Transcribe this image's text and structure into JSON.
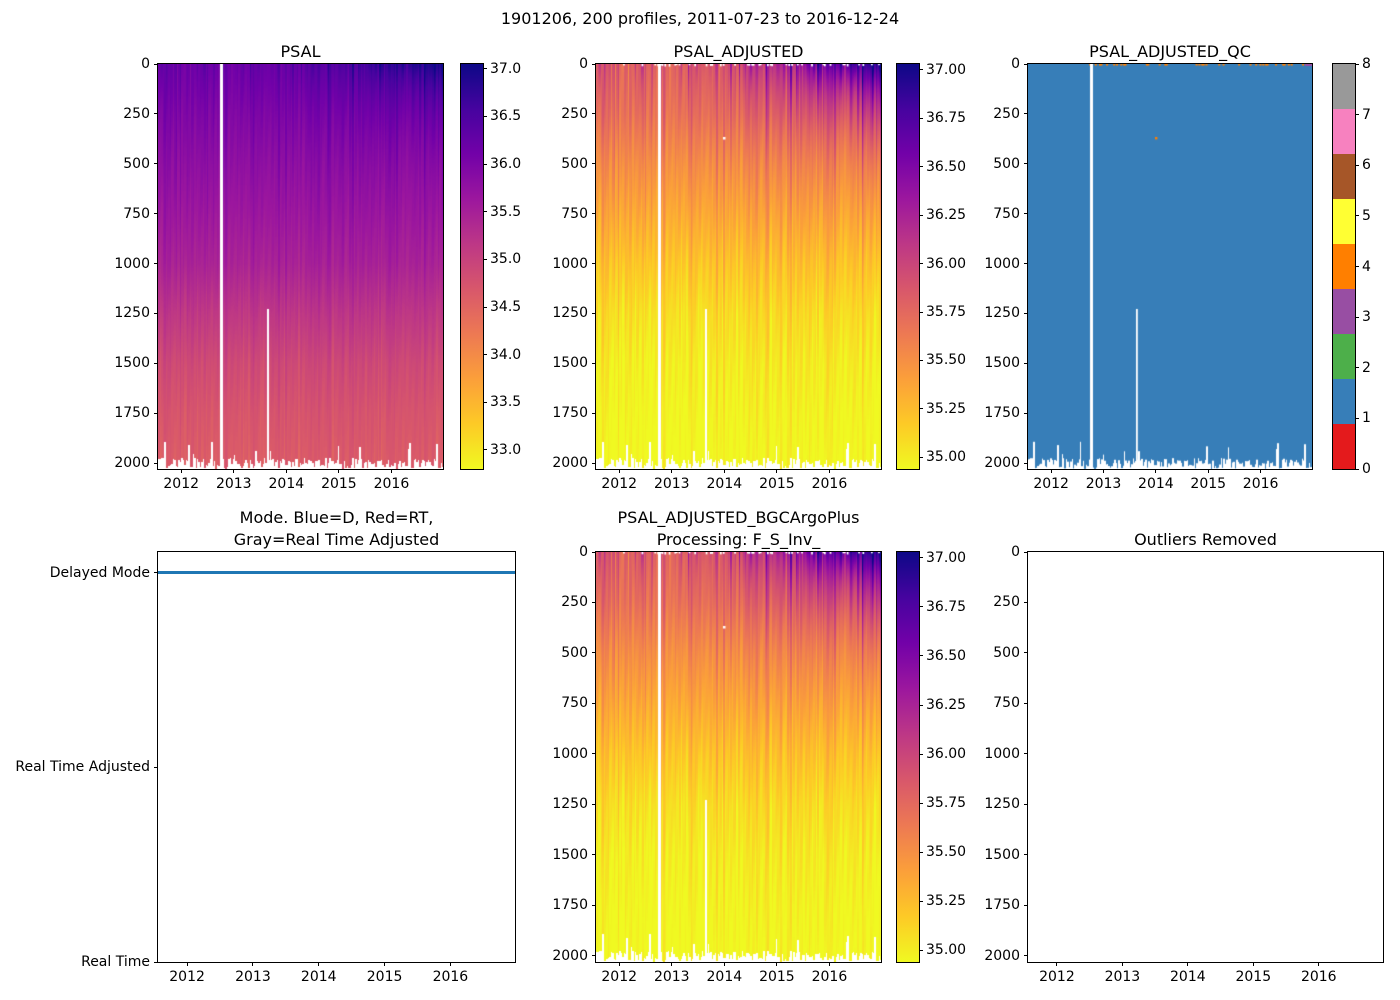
{
  "suptitle": "1901206, 200 profiles, 2011-07-23 to 2016-12-24",
  "panels": [
    {
      "title": "PSAL",
      "y_tick_labels": [
        "0",
        "250",
        "500",
        "750",
        "1000",
        "1250",
        "1500",
        "1750",
        "2000"
      ],
      "x_tick_labels": [
        "2012",
        "2013",
        "2014",
        "2015",
        "2016"
      ],
      "colorbar_tick_labels": [
        "37.0",
        "36.5",
        "36.0",
        "35.5",
        "35.0",
        "34.5",
        "34.0",
        "33.5",
        "33.0"
      ]
    },
    {
      "title": "PSAL_ADJUSTED",
      "y_tick_labels": [
        "0",
        "250",
        "500",
        "750",
        "1000",
        "1250",
        "1500",
        "1750",
        "2000"
      ],
      "x_tick_labels": [
        "2012",
        "2013",
        "2014",
        "2015",
        "2016"
      ],
      "colorbar_tick_labels": [
        "37.00",
        "36.75",
        "36.50",
        "36.25",
        "36.00",
        "35.75",
        "35.50",
        "35.25",
        "35.00"
      ]
    },
    {
      "title": "PSAL_ADJUSTED_QC",
      "y_tick_labels": [
        "0",
        "250",
        "500",
        "750",
        "1000",
        "1250",
        "1500",
        "1750",
        "2000"
      ],
      "x_tick_labels": [
        "2012",
        "2013",
        "2014",
        "2015",
        "2016"
      ],
      "colorbar_tick_labels": [
        "8",
        "7",
        "6",
        "5",
        "4",
        "3",
        "2",
        "1",
        "0"
      ]
    },
    {
      "title": "Mode. Blue=D, Red=RT,\nGray=Real Time Adjusted",
      "y_tick_labels": [
        "Delayed Mode",
        "Real Time Adjusted",
        "Real Time"
      ],
      "x_tick_labels": [
        "2012",
        "2013",
        "2014",
        "2015",
        "2016"
      ]
    },
    {
      "title": "PSAL_ADJUSTED_BGCArgoPlus\nProcessing: F_S_Inv_",
      "y_tick_labels": [
        "0",
        "250",
        "500",
        "750",
        "1000",
        "1250",
        "1500",
        "1750",
        "2000"
      ],
      "x_tick_labels": [
        "2012",
        "2013",
        "2014",
        "2015",
        "2016"
      ],
      "colorbar_tick_labels": [
        "37.00",
        "36.75",
        "36.50",
        "36.25",
        "36.00",
        "35.75",
        "35.50",
        "35.25",
        "35.00"
      ]
    },
    {
      "title": "Outliers Removed",
      "y_tick_labels": [
        "0",
        "250",
        "500",
        "750",
        "1000",
        "1250",
        "1500",
        "1750",
        "2000"
      ],
      "x_tick_labels": [
        "2012",
        "2013",
        "2014",
        "2015",
        "2016"
      ]
    }
  ],
  "colors": {
    "background": "#ffffff",
    "mode_line": "#1f77b4",
    "qc_palette": [
      "#e41a1c",
      "#377eb8",
      "#4daf4a",
      "#984ea3",
      "#ff7f00",
      "#ffff33",
      "#a65628",
      "#f781bf",
      "#999999"
    ],
    "plasma_stops": [
      "#0d0887",
      "#46039f",
      "#7201a8",
      "#9c179e",
      "#bd3786",
      "#d8576b",
      "#ed7953",
      "#fb9f3a",
      "#fdca26",
      "#f0f921"
    ]
  },
  "chart_data": [
    {
      "type": "heatmap",
      "title": "PSAL",
      "x_range": [
        "2011-07-23",
        "2016-12-24"
      ],
      "x_range_decimal": [
        2011.558,
        2016.981
      ],
      "x_ticks": [
        2012,
        2013,
        2014,
        2015,
        2016
      ],
      "y_ticks": [
        0,
        250,
        500,
        750,
        1000,
        1250,
        1500,
        1750,
        2000
      ],
      "ylim": [
        0,
        2030
      ],
      "n_profiles": 200,
      "color_scale": {
        "vmin": 32.8,
        "vmax": 37.05,
        "cmap": "plasma reversed (high=dark blue, low=yellow)"
      },
      "mean_profile": {
        "depth": [
          0,
          250,
          500,
          750,
          1000,
          1250,
          1500,
          1750,
          2000
        ],
        "value": [
          36.15,
          35.95,
          35.78,
          35.62,
          35.45,
          35.15,
          34.88,
          34.72,
          34.62
        ]
      },
      "surface_max_late": 37.0,
      "missing_profile_time": 2012.76,
      "partial_missing": {
        "time": 2013.63,
        "below_depth": 1230
      }
    },
    {
      "type": "heatmap",
      "title": "PSAL_ADJUSTED",
      "x_range": [
        "2011-07-23",
        "2016-12-24"
      ],
      "x_range_decimal": [
        2011.558,
        2016.981
      ],
      "x_ticks": [
        2012,
        2013,
        2014,
        2015,
        2016
      ],
      "y_ticks": [
        0,
        250,
        500,
        750,
        1000,
        1250,
        1500,
        1750,
        2000
      ],
      "ylim": [
        0,
        2030
      ],
      "n_profiles": 200,
      "color_scale": {
        "vmin": 34.94,
        "vmax": 37.03,
        "cmap": "plasma reversed (high=dark blue, low=yellow)"
      },
      "mean_profile": {
        "depth": [
          0,
          250,
          500,
          750,
          1000,
          1250,
          1500,
          1750,
          2000
        ],
        "value": [
          35.8,
          35.68,
          35.5,
          35.35,
          35.2,
          35.08,
          35.0,
          34.96,
          34.93
        ]
      },
      "surface_max_late": 37.0,
      "missing_profile_time": 2012.76,
      "partial_missing": {
        "time": 2013.63,
        "below_depth": 1230
      },
      "masked_point": {
        "time_frac": 0.45,
        "depth": 370
      },
      "surface_masked_specks": true
    },
    {
      "type": "heatmap",
      "title": "PSAL_ADJUSTED_QC",
      "x_range": [
        "2011-07-23",
        "2016-12-24"
      ],
      "x_range_decimal": [
        2011.558,
        2016.981
      ],
      "x_ticks": [
        2012,
        2013,
        2014,
        2015,
        2016
      ],
      "y_ticks": [
        0,
        250,
        500,
        750,
        1000,
        1250,
        1500,
        1750,
        2000
      ],
      "ylim": [
        0,
        2030
      ],
      "flag_range": [
        0,
        8
      ],
      "dominant_flag": 1,
      "anomalies": [
        {
          "flag": 4,
          "time_frac": 0.45,
          "depth": 370
        },
        {
          "flag": 4,
          "location": "scattered along surface row, mid-to-right"
        },
        {
          "flag": 3,
          "location": "surface row, far right corner"
        }
      ],
      "missing_profile_time": 2012.76,
      "partial_missing": {
        "time": 2013.63,
        "below_depth": 1230
      }
    },
    {
      "type": "line",
      "title": "Mode. Blue=D, Red=RT,\nGray=Real Time Adjusted",
      "x_range": [
        "2011-07-23",
        "2016-12-24"
      ],
      "x_range_decimal": [
        2011.558,
        2016.981
      ],
      "x_ticks": [
        2012,
        2013,
        2014,
        2015,
        2016
      ],
      "categories_y": [
        "Real Time",
        "Real Time Adjusted",
        "Delayed Mode"
      ],
      "series": [
        {
          "name": "mode",
          "value_constant": "Delayed Mode"
        }
      ]
    },
    {
      "type": "heatmap",
      "title": "PSAL_ADJUSTED_BGCArgoPlus\nProcessing: F_S_Inv_",
      "x_range": [
        "2011-07-23",
        "2016-12-24"
      ],
      "x_range_decimal": [
        2011.558,
        2016.981
      ],
      "x_ticks": [
        2012,
        2013,
        2014,
        2015,
        2016
      ],
      "y_ticks": [
        0,
        250,
        500,
        750,
        1000,
        1250,
        1500,
        1750,
        2000
      ],
      "ylim": [
        0,
        2030
      ],
      "n_profiles": 200,
      "color_scale": {
        "vmin": 34.94,
        "vmax": 37.03,
        "cmap": "plasma reversed (high=dark blue, low=yellow)"
      },
      "mean_profile": {
        "depth": [
          0,
          250,
          500,
          750,
          1000,
          1250,
          1500,
          1750,
          2000
        ],
        "value": [
          35.8,
          35.68,
          35.5,
          35.35,
          35.2,
          35.08,
          35.0,
          34.96,
          34.93
        ]
      },
      "surface_max_late": 37.0,
      "missing_profile_time": 2012.76,
      "partial_missing": {
        "time": 2013.63,
        "below_depth": 1230
      },
      "masked_point": {
        "time_frac": 0.45,
        "depth": 370
      },
      "surface_masked_specks": true
    },
    {
      "type": "heatmap",
      "title": "Outliers Removed",
      "empty": true,
      "x_range": [
        "2011-07-23",
        "2016-12-24"
      ],
      "x_range_decimal": [
        2011.558,
        2016.981
      ],
      "x_ticks": [
        2012,
        2013,
        2014,
        2015,
        2016
      ],
      "y_ticks": [
        0,
        250,
        500,
        750,
        1000,
        1250,
        1500,
        1750,
        2000
      ],
      "ylim": [
        0,
        2000
      ]
    }
  ]
}
